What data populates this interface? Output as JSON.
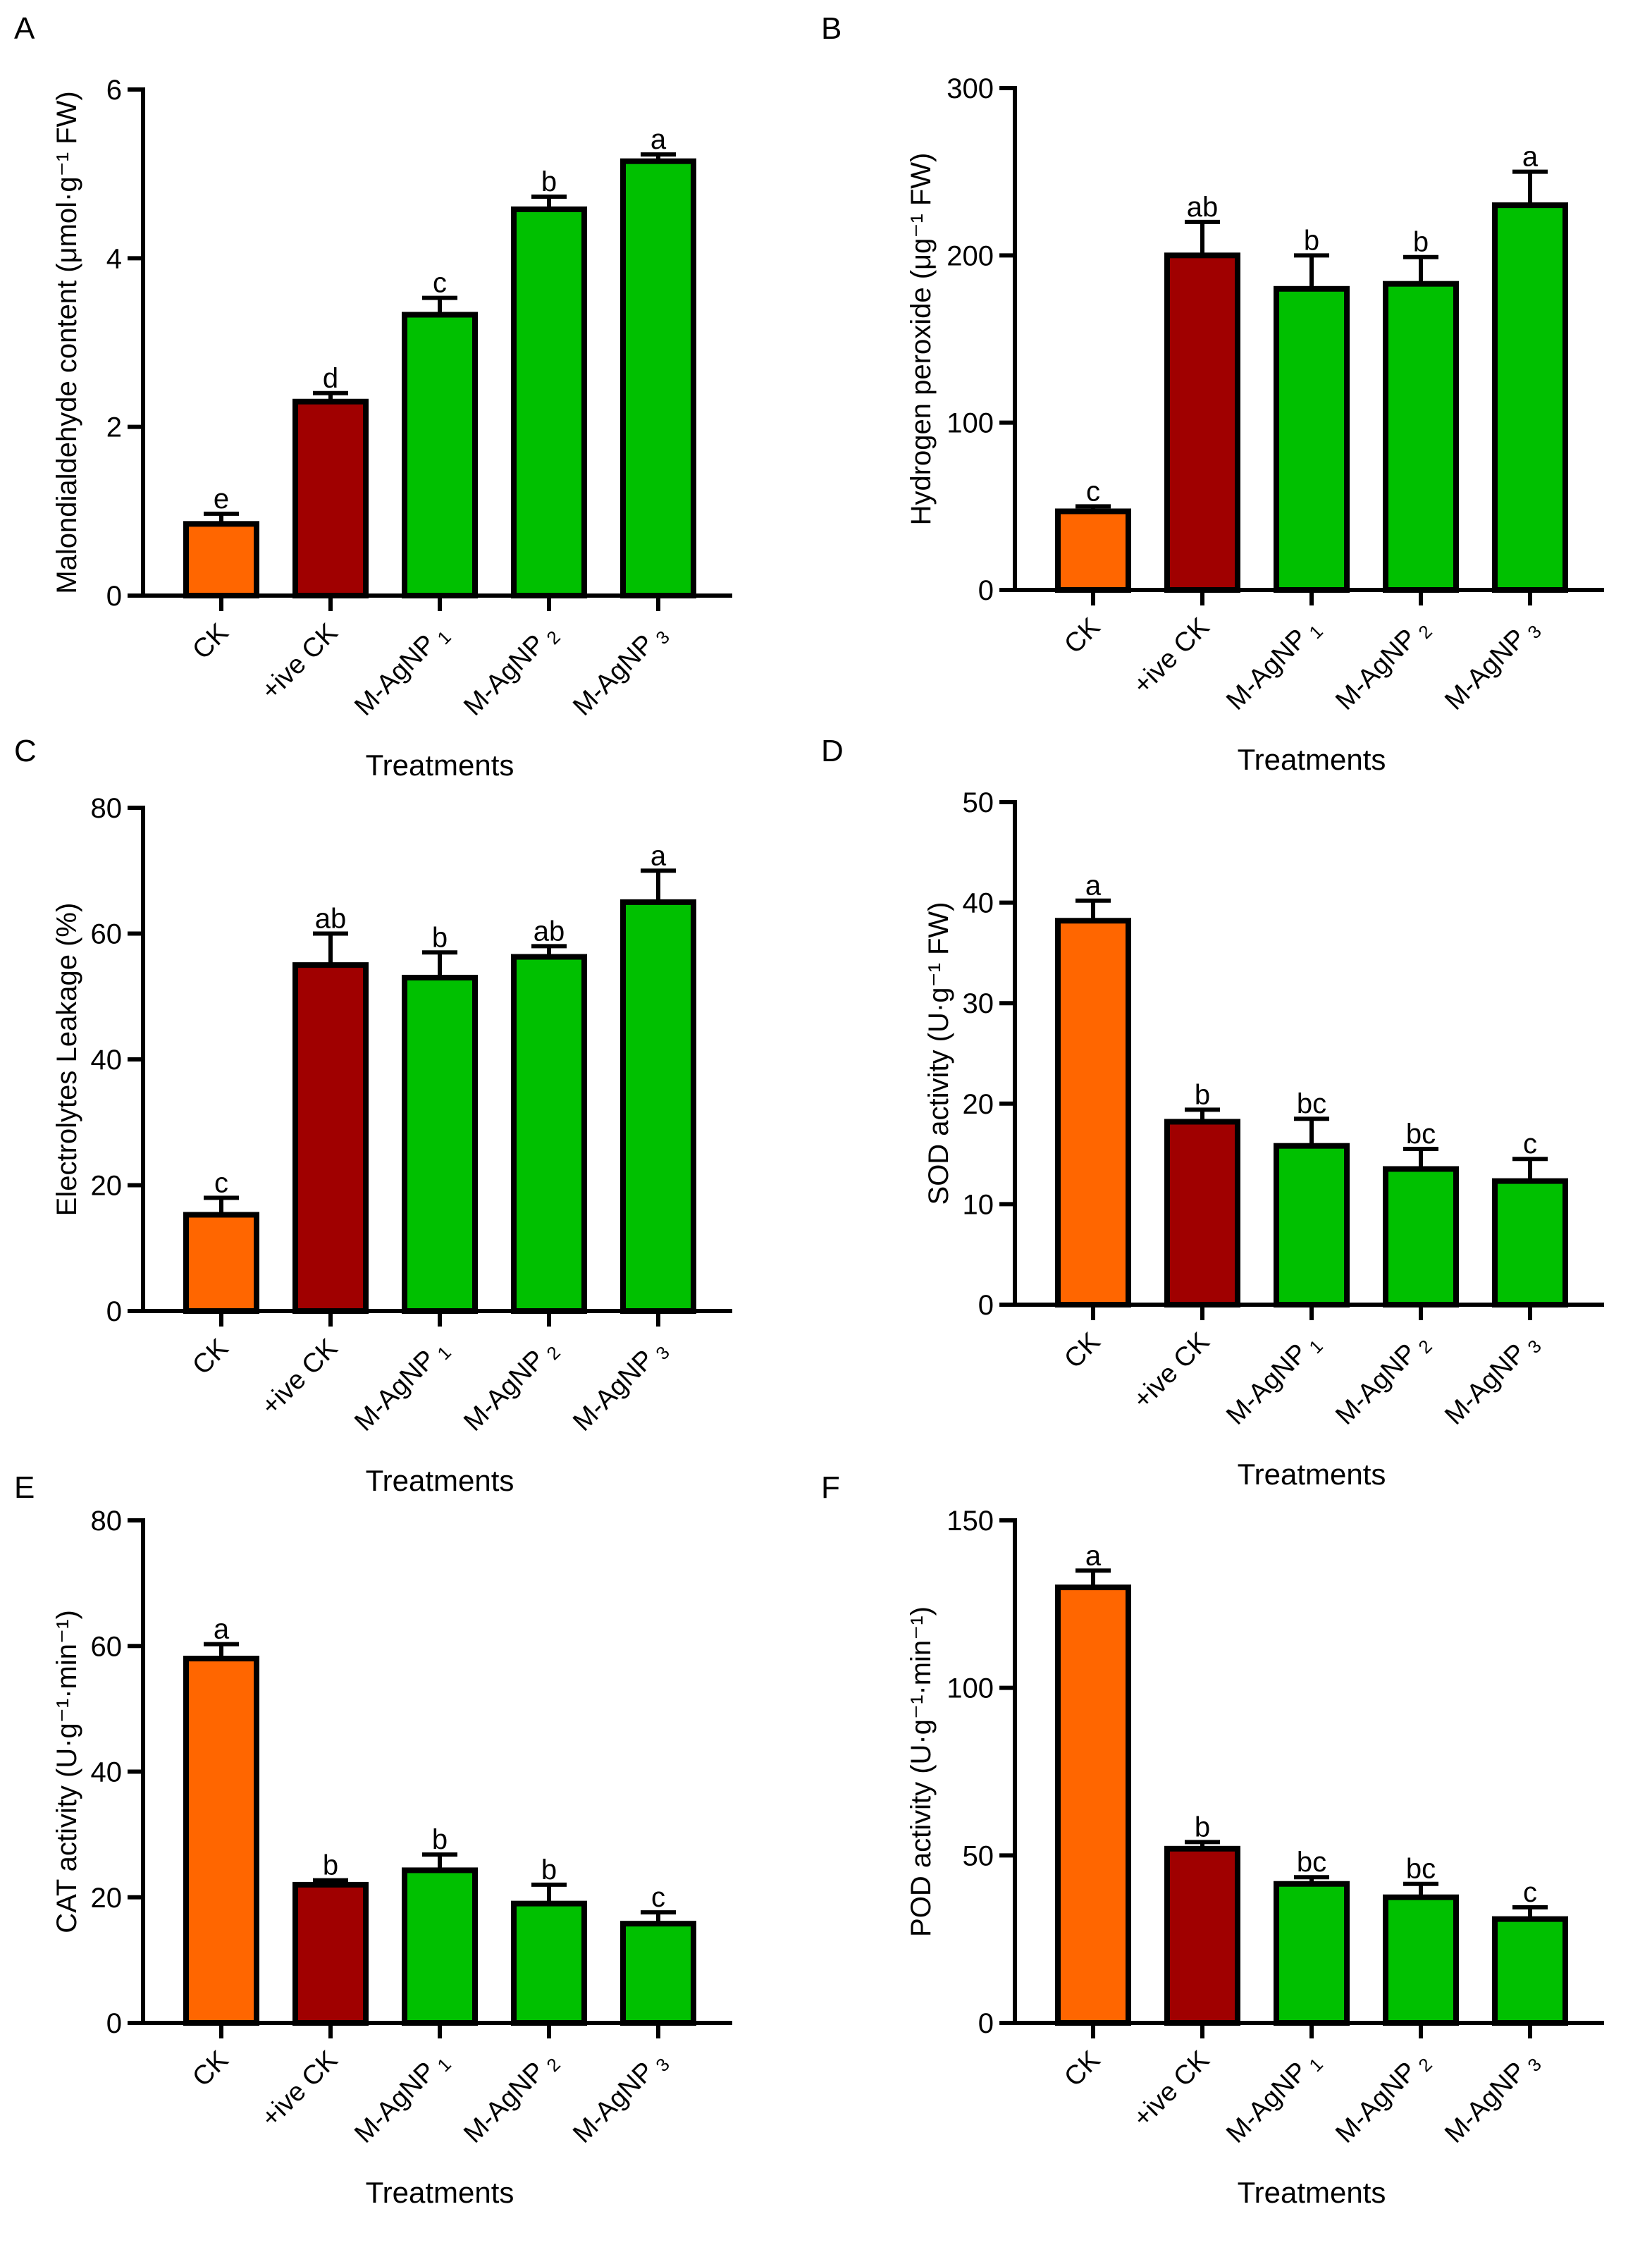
{
  "colors": {
    "CK": "#FF6600",
    "positive_CK": "#A00000",
    "M-AgNP": "#00C000",
    "outline": "#000000"
  },
  "chart_data": [
    {
      "panel": "A",
      "type": "bar",
      "xlabel": "Treatments",
      "ylabel": "Malondialdehyde content (μmol·g⁻¹ FW)",
      "categories": [
        {
          "text": "CK",
          "sub": ""
        },
        {
          "text": "+ive CK",
          "sub": ""
        },
        {
          "text": "M-AgNP",
          "sub": "1"
        },
        {
          "text": "M-AgNP",
          "sub": "2"
        },
        {
          "text": "M-AgNP",
          "sub": "3"
        }
      ],
      "values": [
        0.85,
        2.3,
        3.33,
        4.58,
        5.15
      ],
      "errors": [
        0.12,
        0.1,
        0.2,
        0.15,
        0.08
      ],
      "letters": [
        "e",
        "d",
        "c",
        "b",
        "a"
      ],
      "ylim": [
        0,
        6
      ],
      "yticks": [
        0,
        2,
        4,
        6
      ]
    },
    {
      "panel": "B",
      "type": "bar",
      "xlabel": "Treatments",
      "ylabel": "Hydrogen peroxide (μg⁻¹ FW)",
      "categories": [
        {
          "text": "CK",
          "sub": ""
        },
        {
          "text": "+ive CK",
          "sub": ""
        },
        {
          "text": "M-AgNP",
          "sub": "1"
        },
        {
          "text": "M-AgNP",
          "sub": "2"
        },
        {
          "text": "M-AgNP",
          "sub": "3"
        }
      ],
      "values": [
        47,
        200,
        180,
        183,
        230
      ],
      "errors": [
        3,
        20,
        20,
        16,
        20
      ],
      "letters": [
        "c",
        "ab",
        "b",
        "b",
        "a"
      ],
      "ylim": [
        0,
        300
      ],
      "yticks": [
        0,
        100,
        200,
        300
      ]
    },
    {
      "panel": "C",
      "type": "bar",
      "xlabel": "Treatments",
      "ylabel": "Electrolytes Leakage (%)",
      "categories": [
        {
          "text": "CK",
          "sub": ""
        },
        {
          "text": "+ive CK",
          "sub": ""
        },
        {
          "text": "M-AgNP",
          "sub": "1"
        },
        {
          "text": "M-AgNP",
          "sub": "2"
        },
        {
          "text": "M-AgNP",
          "sub": "3"
        }
      ],
      "values": [
        15.3,
        55,
        53,
        56.3,
        65
      ],
      "errors": [
        2.7,
        5,
        4,
        1.7,
        5
      ],
      "letters": [
        "c",
        "ab",
        "b",
        "ab",
        "a"
      ],
      "ylim": [
        0,
        80
      ],
      "yticks": [
        0,
        20,
        40,
        60,
        80
      ]
    },
    {
      "panel": "D",
      "type": "bar",
      "xlabel": "Treatments",
      "ylabel": "SOD activity (U·g⁻¹ FW)",
      "categories": [
        {
          "text": "CK",
          "sub": ""
        },
        {
          "text": "+ive CK",
          "sub": ""
        },
        {
          "text": "M-AgNP",
          "sub": "1"
        },
        {
          "text": "M-AgNP",
          "sub": "2"
        },
        {
          "text": "M-AgNP",
          "sub": "3"
        }
      ],
      "values": [
        38.2,
        18.2,
        15.8,
        13.5,
        12.3
      ],
      "errors": [
        2,
        1.2,
        2.7,
        2,
        2.2
      ],
      "letters": [
        "a",
        "b",
        "bc",
        "bc",
        "c"
      ],
      "ylim": [
        0,
        50
      ],
      "yticks": [
        0,
        10,
        20,
        30,
        40,
        50
      ]
    },
    {
      "panel": "E",
      "type": "bar",
      "xlabel": "Treatments",
      "ylabel": "CAT activity (U·g⁻¹·min⁻¹)",
      "categories": [
        {
          "text": "CK",
          "sub": ""
        },
        {
          "text": "+ive CK",
          "sub": ""
        },
        {
          "text": "M-AgNP",
          "sub": "1"
        },
        {
          "text": "M-AgNP",
          "sub": "2"
        },
        {
          "text": "M-AgNP",
          "sub": "3"
        }
      ],
      "values": [
        58,
        22,
        24.3,
        19,
        15.8
      ],
      "errors": [
        2.3,
        0.7,
        2.5,
        3,
        1.8
      ],
      "letters": [
        "a",
        "b",
        "b",
        "b",
        "c"
      ],
      "ylim": [
        0,
        80
      ],
      "yticks": [
        0,
        20,
        40,
        60,
        80
      ]
    },
    {
      "panel": "F",
      "type": "bar",
      "xlabel": "Treatments",
      "ylabel": "POD activity (U·g⁻¹·min⁻¹)",
      "categories": [
        {
          "text": "CK",
          "sub": ""
        },
        {
          "text": "+ive CK",
          "sub": ""
        },
        {
          "text": "M-AgNP",
          "sub": "1"
        },
        {
          "text": "M-AgNP",
          "sub": "2"
        },
        {
          "text": "M-AgNP",
          "sub": "3"
        }
      ],
      "values": [
        130,
        52,
        41.5,
        37.5,
        31
      ],
      "errors": [
        5,
        2,
        2,
        4,
        3.5
      ],
      "letters": [
        "a",
        "b",
        "bc",
        "bc",
        "c"
      ],
      "ylim": [
        0,
        150
      ],
      "yticks": [
        0,
        50,
        100,
        150
      ]
    }
  ]
}
